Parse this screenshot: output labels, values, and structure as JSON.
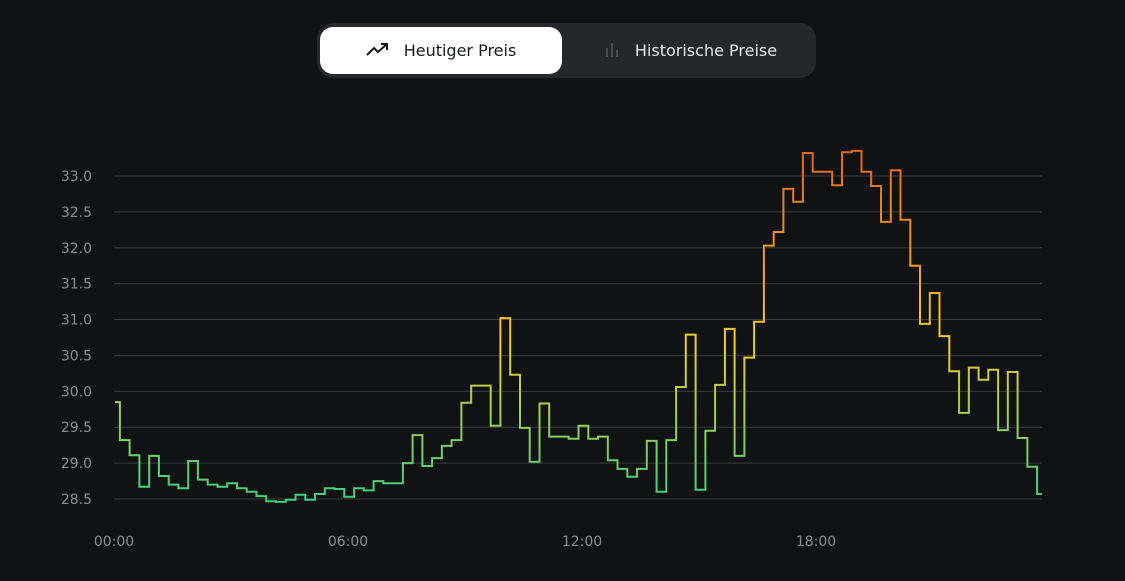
{
  "toggle": {
    "active": {
      "label": "Heutiger Preis",
      "icon": "trending-up-icon"
    },
    "inactive": {
      "label": "Historische Preise",
      "icon": "bar-chart-icon"
    }
  },
  "colors": {
    "background": "#111214",
    "low": "#3ecf7e",
    "mid": "#f2cc2f",
    "high": "#e2691a",
    "grid": "#3a3c40"
  },
  "chart_data": {
    "type": "line",
    "step": true,
    "title": "",
    "xlabel": "",
    "ylabel": "",
    "ylim": [
      28.5,
      33.0
    ],
    "yticks": [
      28.5,
      29.0,
      29.5,
      30.0,
      30.5,
      31.0,
      31.5,
      32.0,
      32.5,
      33.0
    ],
    "ytick_labels": [
      "28.5",
      "29.0",
      "29.5",
      "30.0",
      "30.5",
      "31.0",
      "31.5",
      "32.0",
      "32.5",
      "33.0"
    ],
    "xticks": [
      0,
      6,
      12,
      18
    ],
    "xtick_labels": [
      "00:00",
      "06:00",
      "12:00",
      "18:00"
    ],
    "x_unit": "hours, 15-minute intervals",
    "grid": true,
    "values": [
      29.85,
      29.32,
      29.11,
      28.67,
      29.1,
      28.82,
      28.7,
      28.65,
      29.03,
      28.77,
      28.7,
      28.67,
      28.72,
      28.65,
      28.6,
      28.54,
      28.47,
      28.46,
      28.49,
      28.56,
      28.49,
      28.57,
      28.65,
      28.64,
      28.53,
      28.65,
      28.62,
      28.75,
      28.72,
      28.72,
      29.0,
      29.39,
      28.96,
      29.07,
      29.24,
      29.32,
      29.84,
      30.08,
      30.08,
      29.52,
      31.02,
      30.23,
      29.49,
      29.02,
      29.83,
      29.37,
      29.37,
      29.34,
      29.52,
      29.34,
      29.37,
      29.04,
      28.92,
      28.81,
      28.92,
      29.31,
      28.6,
      29.32,
      30.06,
      30.79,
      28.63,
      29.45,
      30.09,
      30.87,
      29.1,
      30.47,
      30.97,
      32.03,
      32.22,
      32.82,
      32.64,
      33.32,
      33.06,
      33.06,
      32.87,
      33.33,
      33.35,
      33.06,
      32.86,
      32.36,
      33.08,
      32.39,
      31.75,
      30.94,
      31.37,
      30.77,
      30.28,
      29.7,
      30.33,
      30.16,
      30.3,
      29.46,
      30.27,
      29.35,
      28.95,
      28.57
    ]
  }
}
